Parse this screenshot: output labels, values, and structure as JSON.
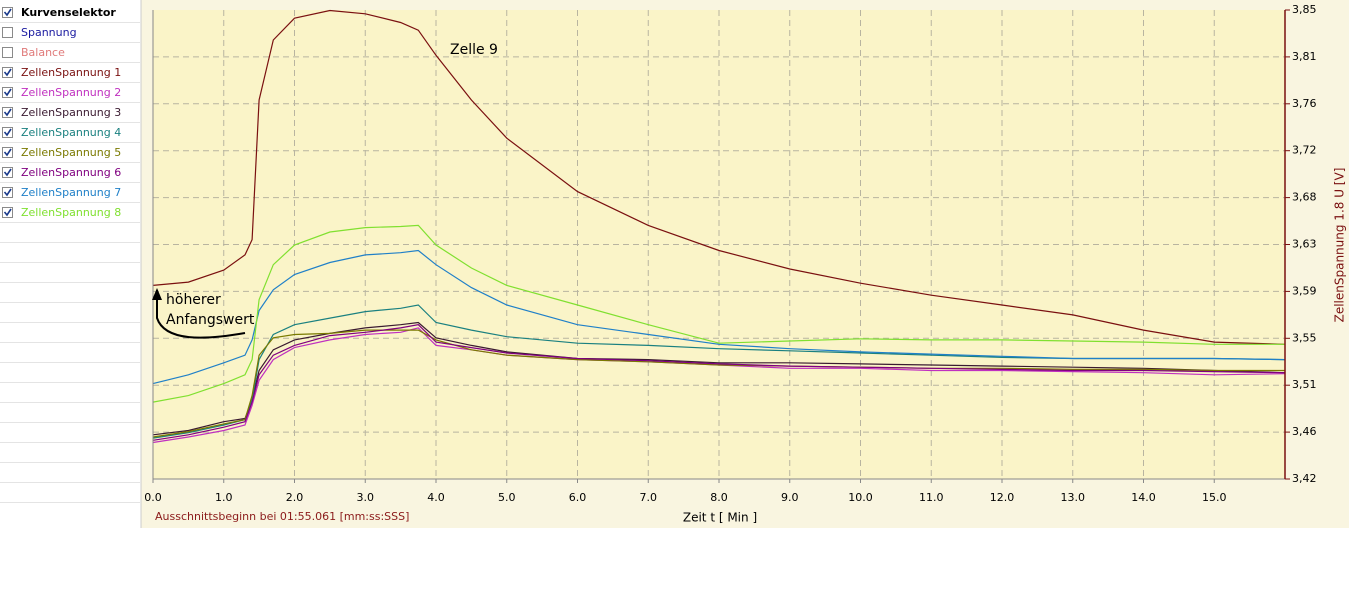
{
  "panel": {
    "title": "Kurvenselektor",
    "items": [
      {
        "label": "Spannung",
        "color": "#1a1aa0",
        "checked": false
      },
      {
        "label": "Balance",
        "color": "#e07a7a",
        "checked": false
      }
    ]
  },
  "chart_data": {
    "type": "line",
    "x": [
      0,
      0.5,
      1.0,
      1.3,
      1.4,
      1.5,
      1.7,
      2.0,
      2.5,
      3.0,
      3.5,
      3.75,
      4.0,
      4.5,
      5,
      6,
      7,
      8,
      9,
      10,
      11,
      12,
      13,
      14,
      15,
      16
    ],
    "xlim": [
      0,
      16
    ],
    "xticks": [
      {
        "value": 0,
        "label": "0.0"
      },
      {
        "value": 1,
        "label": "1.0"
      },
      {
        "value": 2,
        "label": "2.0"
      },
      {
        "value": 3,
        "label": "3.0"
      },
      {
        "value": 4,
        "label": "4.0"
      },
      {
        "value": 5,
        "label": "5.0"
      },
      {
        "value": 6,
        "label": "6.0"
      },
      {
        "value": 7,
        "label": "7.0"
      },
      {
        "value": 8,
        "label": "8.0"
      },
      {
        "value": 9,
        "label": "9.0"
      },
      {
        "value": 10,
        "label": "10.0"
      },
      {
        "value": 11,
        "label": "11.0"
      },
      {
        "value": 12,
        "label": "12.0"
      },
      {
        "value": 13,
        "label": "13.0"
      },
      {
        "value": 14,
        "label": "14.0"
      },
      {
        "value": 15,
        "label": "15.0"
      }
    ],
    "ylim": [
      3.4195,
      3.8495
    ],
    "yticks": [
      {
        "value": 3.4195,
        "label": "3,42"
      },
      {
        "value": 3.4625,
        "label": "3,46"
      },
      {
        "value": 3.5055,
        "label": "3,51"
      },
      {
        "value": 3.5485,
        "label": "3,55"
      },
      {
        "value": 3.5915,
        "label": "3,59"
      },
      {
        "value": 3.6345,
        "label": "3,63"
      },
      {
        "value": 3.6775,
        "label": "3,68"
      },
      {
        "value": 3.7205,
        "label": "3,72"
      },
      {
        "value": 3.7635,
        "label": "3,76"
      },
      {
        "value": 3.8065,
        "label": "3,81"
      },
      {
        "value": 3.8495,
        "label": "3,85"
      }
    ],
    "grid": true,
    "xlabel": "Zeit  t  [ Min ]",
    "ylabel": "ZellenSpannung 1.8  U  [V]",
    "footnote": "Ausschnittsbeginn bei 01:55.061 [mm:ss:SSS]",
    "annotations": [
      "Zelle 9",
      "höherer",
      "Anfangswert"
    ],
    "series": [
      {
        "name": "ZellenSpannung 1",
        "color": "#7a1010",
        "values": [
          3.597,
          3.6,
          3.611,
          3.625,
          3.639,
          3.767,
          3.822,
          3.842,
          3.849,
          3.846,
          3.838,
          3.831,
          3.808,
          3.767,
          3.732,
          3.683,
          3.652,
          3.629,
          3.612,
          3.599,
          3.588,
          3.579,
          3.57,
          3.556,
          3.545,
          3.543
        ]
      },
      {
        "name": "ZellenSpannung 2",
        "color": "#c030c0",
        "values": [
          3.453,
          3.458,
          3.464,
          3.469,
          3.487,
          3.51,
          3.529,
          3.54,
          3.547,
          3.552,
          3.554,
          3.558,
          3.542,
          3.538,
          3.533,
          3.529,
          3.527,
          3.524,
          3.521,
          3.521,
          3.519,
          3.519,
          3.518,
          3.517,
          3.515,
          3.516
        ]
      },
      {
        "name": "ZellenSpannung 3",
        "color": "#3a1a30",
        "values": [
          3.46,
          3.464,
          3.472,
          3.475,
          3.492,
          3.519,
          3.538,
          3.547,
          3.553,
          3.558,
          3.561,
          3.563,
          3.549,
          3.542,
          3.536,
          3.53,
          3.529,
          3.526,
          3.526,
          3.525,
          3.524,
          3.523,
          3.522,
          3.521,
          3.519,
          3.517
        ]
      },
      {
        "name": "ZellenSpannung 4",
        "color": "#1a8080",
        "values": [
          3.457,
          3.462,
          3.469,
          3.474,
          3.492,
          3.529,
          3.552,
          3.561,
          3.567,
          3.573,
          3.576,
          3.579,
          3.563,
          3.556,
          3.55,
          3.544,
          3.542,
          3.539,
          3.537,
          3.535,
          3.533,
          3.531,
          3.53,
          3.53,
          3.53,
          3.529
        ]
      },
      {
        "name": "ZellenSpannung 5",
        "color": "#7a7a00",
        "values": [
          3.458,
          3.463,
          3.47,
          3.474,
          3.496,
          3.533,
          3.549,
          3.552,
          3.553,
          3.556,
          3.556,
          3.556,
          3.547,
          3.538,
          3.533,
          3.529,
          3.527,
          3.524,
          3.523,
          3.522,
          3.521,
          3.521,
          3.52,
          3.52,
          3.519,
          3.519
        ]
      },
      {
        "name": "ZellenSpannung 6",
        "color": "#800080",
        "values": [
          3.455,
          3.46,
          3.467,
          3.472,
          3.49,
          3.515,
          3.533,
          3.542,
          3.551,
          3.554,
          3.558,
          3.561,
          3.545,
          3.54,
          3.535,
          3.53,
          3.528,
          3.525,
          3.523,
          3.522,
          3.521,
          3.52,
          3.519,
          3.519,
          3.518,
          3.517
        ]
      },
      {
        "name": "ZellenSpannung 7",
        "color": "#2080c8",
        "values": [
          3.507,
          3.515,
          3.526,
          3.533,
          3.547,
          3.574,
          3.593,
          3.607,
          3.618,
          3.625,
          3.627,
          3.629,
          3.616,
          3.595,
          3.579,
          3.561,
          3.552,
          3.543,
          3.539,
          3.536,
          3.534,
          3.532,
          3.53,
          3.53,
          3.53,
          3.529
        ]
      },
      {
        "name": "ZellenSpannung 8",
        "color": "#80e030",
        "values": [
          3.49,
          3.496,
          3.507,
          3.515,
          3.529,
          3.584,
          3.616,
          3.634,
          3.646,
          3.65,
          3.651,
          3.652,
          3.634,
          3.613,
          3.597,
          3.579,
          3.561,
          3.544,
          3.546,
          3.548,
          3.547,
          3.547,
          3.546,
          3.545,
          3.543,
          3.543
        ]
      }
    ]
  }
}
